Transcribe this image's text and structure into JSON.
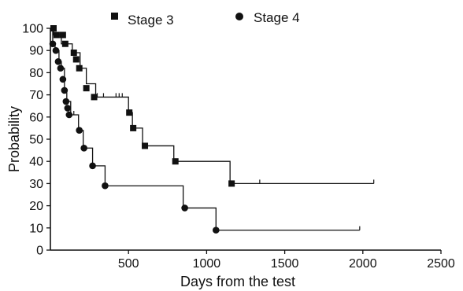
{
  "chart_data": {
    "type": "line",
    "subtype": "kaplan-meier step plot",
    "title": "",
    "xlabel": "Days from the test",
    "ylabel": "Probability",
    "xlim": [
      0,
      2500
    ],
    "ylim": [
      0,
      100
    ],
    "x_ticks": [
      500,
      1000,
      1500,
      2000,
      2500
    ],
    "y_ticks": [
      0,
      10,
      20,
      30,
      40,
      50,
      60,
      70,
      80,
      90,
      100
    ],
    "grid": false,
    "legend_position": "top",
    "series": [
      {
        "name": "Stage 3",
        "marker": "square",
        "color": "#111111",
        "steps": [
          [
            0,
            100
          ],
          [
            20,
            97
          ],
          [
            70,
            93
          ],
          [
            140,
            89
          ],
          [
            190,
            82
          ],
          [
            230,
            75
          ],
          [
            290,
            69
          ],
          [
            500,
            62
          ],
          [
            525,
            55
          ],
          [
            590,
            47
          ],
          [
            790,
            40
          ],
          [
            1150,
            30
          ],
          [
            2070,
            30
          ]
        ],
        "event_markers": [
          [
            20,
            100
          ],
          [
            40,
            97
          ],
          [
            80,
            97
          ],
          [
            95,
            93
          ],
          [
            150,
            89
          ],
          [
            165,
            86
          ],
          [
            185,
            82
          ],
          [
            230,
            73
          ],
          [
            280,
            69
          ],
          [
            505,
            62
          ],
          [
            530,
            55
          ],
          [
            605,
            47
          ],
          [
            800,
            40
          ],
          [
            1160,
            30
          ]
        ],
        "censor_marks": [
          [
            300,
            69
          ],
          [
            340,
            69
          ],
          [
            420,
            69
          ],
          [
            440,
            69
          ],
          [
            460,
            69
          ],
          [
            1340,
            30
          ],
          [
            2070,
            30
          ]
        ]
      },
      {
        "name": "Stage 4",
        "marker": "circle",
        "color": "#111111",
        "steps": [
          [
            0,
            100
          ],
          [
            15,
            93
          ],
          [
            30,
            90
          ],
          [
            55,
            85
          ],
          [
            70,
            82
          ],
          [
            90,
            72
          ],
          [
            105,
            67
          ],
          [
            130,
            61
          ],
          [
            180,
            54
          ],
          [
            210,
            46
          ],
          [
            270,
            38
          ],
          [
            350,
            29
          ],
          [
            850,
            19
          ],
          [
            1060,
            9
          ],
          [
            1980,
            9
          ]
        ],
        "event_markers": [
          [
            15,
            93
          ],
          [
            35,
            90
          ],
          [
            50,
            85
          ],
          [
            65,
            82
          ],
          [
            80,
            77
          ],
          [
            90,
            72
          ],
          [
            100,
            67
          ],
          [
            110,
            64
          ],
          [
            120,
            61
          ],
          [
            185,
            54
          ],
          [
            215,
            46
          ],
          [
            270,
            38
          ],
          [
            350,
            29
          ],
          [
            860,
            19
          ],
          [
            1060,
            9
          ]
        ],
        "censor_marks": [
          [
            150,
            61
          ],
          [
            1980,
            9
          ]
        ]
      }
    ]
  }
}
